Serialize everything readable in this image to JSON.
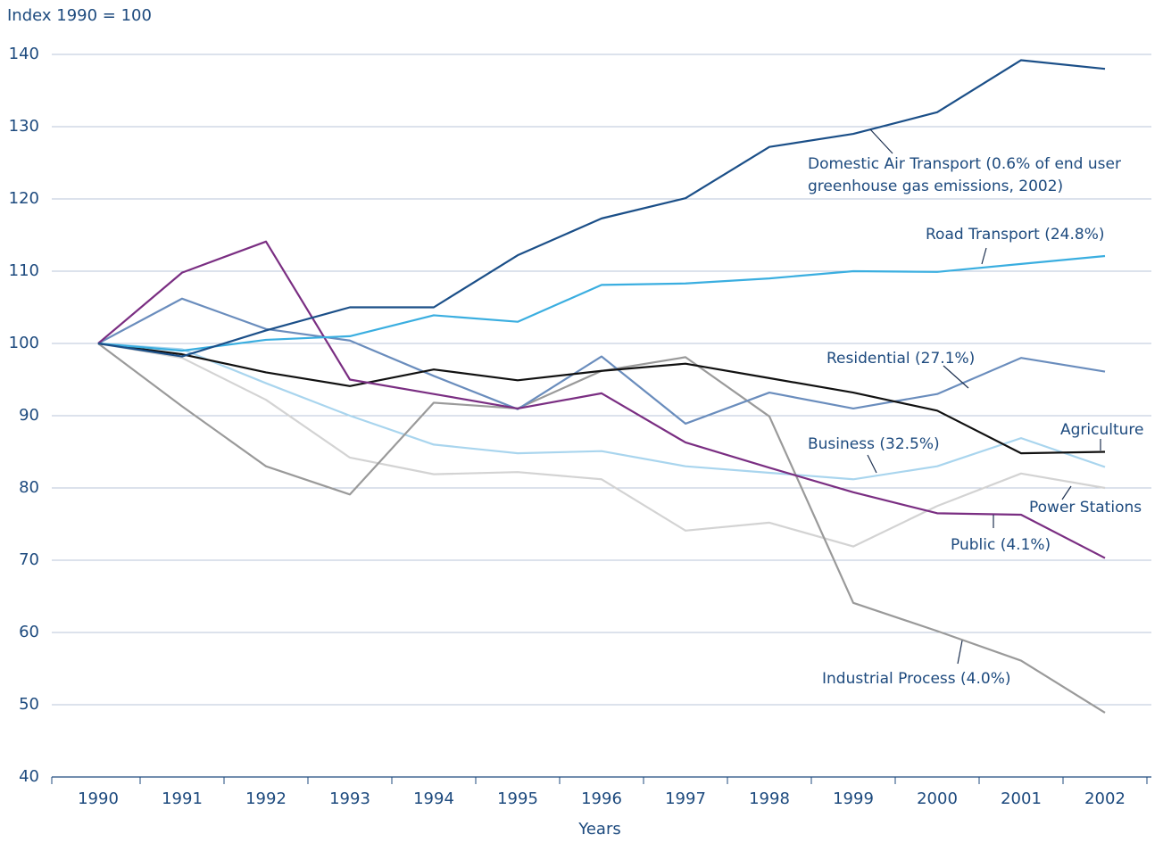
{
  "chart_data": {
    "type": "line",
    "y_axis_label": "Index 1990 = 100",
    "x_axis_label": "Years",
    "categories": [
      "1990",
      "1991",
      "1992",
      "1993",
      "1994",
      "1995",
      "1996",
      "1997",
      "1998",
      "1999",
      "2000",
      "2001",
      "2002"
    ],
    "ylim": [
      40,
      140
    ],
    "yticks": [
      40,
      50,
      60,
      70,
      80,
      90,
      100,
      110,
      120,
      130,
      140
    ],
    "grid": true,
    "series": [
      {
        "name": "Domestic Air Transport (0.6% of end user greenhouse gas emissions, 2002)",
        "color": "#1b4f88",
        "values": [
          100,
          98.2,
          101.8,
          105,
          105,
          112.2,
          117.3,
          120.1,
          127.2,
          129,
          132,
          139.2,
          138
        ]
      },
      {
        "name": "Road Transport (24.8%)",
        "color": "#3aaee0",
        "values": [
          100,
          99,
          100.5,
          101,
          103.9,
          103,
          108.1,
          108.3,
          109,
          110,
          109.9,
          111,
          112.1
        ]
      },
      {
        "name": "Residential (27.1%)",
        "color": "#6a8dbd",
        "values": [
          100,
          106.2,
          102,
          100.4,
          95.5,
          90.9,
          98.2,
          88.9,
          93.2,
          91,
          93,
          98,
          96.1
        ]
      },
      {
        "name": "Agriculture",
        "color": "#111111",
        "values": [
          100,
          98.5,
          96,
          94.1,
          96.4,
          94.9,
          96.2,
          97.2,
          95.2,
          93.2,
          90.7,
          84.8,
          85
        ]
      },
      {
        "name": "Business (32.5%)",
        "color": "#a9d5ee",
        "values": [
          100,
          99.2,
          94.5,
          90,
          86,
          84.8,
          85.1,
          83,
          82.1,
          81.2,
          83,
          86.9,
          82.9
        ]
      },
      {
        "name": "Power Stations",
        "color": "#d3d3d3",
        "values": [
          100,
          98,
          92.2,
          84.2,
          81.9,
          82.2,
          81.2,
          74.1,
          75.2,
          71.9,
          77.5,
          82,
          80
        ]
      },
      {
        "name": "Public (4.1%)",
        "color": "#7a2e82",
        "values": [
          100,
          109.8,
          114.1,
          95,
          93,
          91,
          93.1,
          86.3,
          82.8,
          79.4,
          76.5,
          76.3,
          70.3
        ]
      },
      {
        "name": "Industrial Process (4.0%)",
        "color": "#9a9a9a",
        "values": [
          100,
          91.3,
          83,
          79.1,
          91.8,
          91,
          96.2,
          98.1,
          89.9,
          64.1,
          60.2,
          56.1,
          48.9
        ]
      }
    ]
  }
}
